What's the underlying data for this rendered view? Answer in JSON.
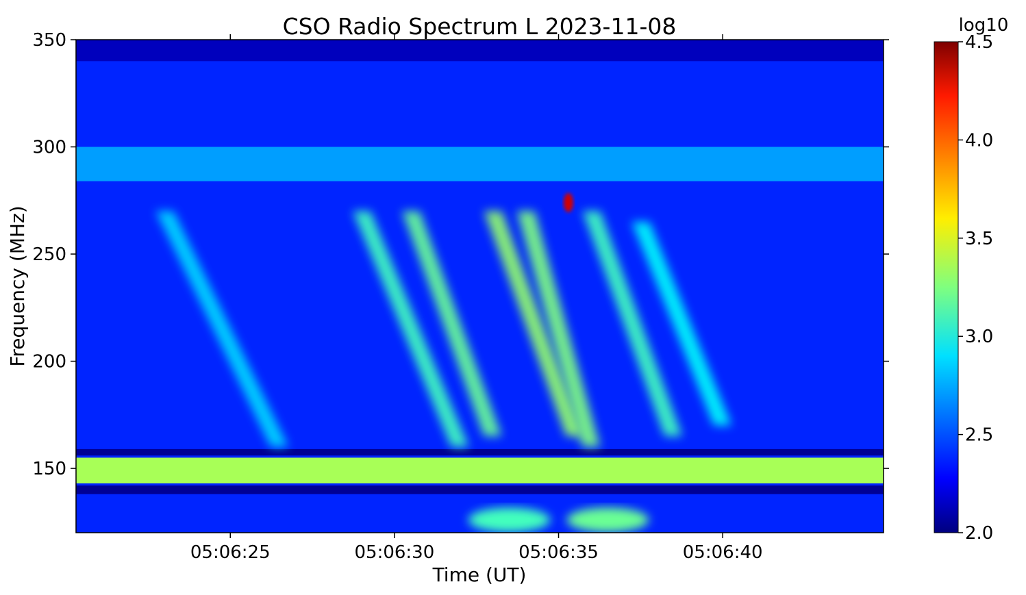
{
  "chart_data": {
    "type": "heatmap",
    "title": "CSO Radio Spectrum L 2023-11-08",
    "xlabel": "Time (UT)",
    "ylabel": "Frequency (MHz)",
    "x_unit": "UT",
    "y_unit": "MHz",
    "xlim": [
      "05:06:20.3",
      "05:06:44.9"
    ],
    "ylim": [
      120,
      350
    ],
    "x_ticks": [
      "05:06:25",
      "05:06:30",
      "05:06:35",
      "05:06:40"
    ],
    "y_ticks": [
      150,
      200,
      250,
      300,
      350
    ],
    "colorbar": {
      "label": "log10",
      "range": [
        2.0,
        4.5
      ],
      "ticks": [
        "2.0",
        "2.5",
        "3.0",
        "3.5",
        "4.0",
        "4.5"
      ],
      "colormap": "jet"
    },
    "features": [
      {
        "kind": "background",
        "value": 2.4
      },
      {
        "kind": "band",
        "f_from": 340,
        "f_to": 350,
        "value": 2.15
      },
      {
        "kind": "band",
        "f_from": 156,
        "f_to": 159,
        "value": 2.05
      },
      {
        "kind": "band",
        "f_from": 143,
        "f_to": 155,
        "value": 3.35
      },
      {
        "kind": "band",
        "f_from": 138,
        "f_to": 142,
        "value": 2.05
      },
      {
        "kind": "band",
        "f_from": 284,
        "f_to": 300,
        "value": 2.7
      },
      {
        "kind": "burst",
        "t_top": "05:06:23.0",
        "t_bottom": "05:06:26.5",
        "f_top": 270,
        "f_bottom": 160,
        "value": 2.85
      },
      {
        "kind": "burst",
        "t_top": "05:06:29.0",
        "t_bottom": "05:06:32.0",
        "f_top": 270,
        "f_bottom": 160,
        "value": 3.1
      },
      {
        "kind": "burst",
        "t_top": "05:06:30.5",
        "t_bottom": "05:06:33.0",
        "f_top": 270,
        "f_bottom": 165,
        "value": 3.2
      },
      {
        "kind": "burst",
        "t_top": "05:06:33.0",
        "t_bottom": "05:06:35.5",
        "f_top": 270,
        "f_bottom": 165,
        "value": 3.3
      },
      {
        "kind": "burst",
        "t_top": "05:06:34.0",
        "t_bottom": "05:06:36.0",
        "f_top": 270,
        "f_bottom": 160,
        "value": 3.25
      },
      {
        "kind": "burst",
        "t_top": "05:06:36.0",
        "t_bottom": "05:06:38.5",
        "f_top": 270,
        "f_bottom": 165,
        "value": 3.1
      },
      {
        "kind": "burst",
        "t_top": "05:06:37.5",
        "t_bottom": "05:06:40.0",
        "f_top": 265,
        "f_bottom": 170,
        "value": 2.95
      },
      {
        "kind": "blob",
        "t": "05:06:35.3",
        "f": 274,
        "value": 4.3
      },
      {
        "kind": "blob",
        "t": "05:06:33.5",
        "f": 126,
        "value": 3.1
      },
      {
        "kind": "blob",
        "t": "05:06:36.5",
        "f": 126,
        "value": 3.2
      }
    ]
  }
}
